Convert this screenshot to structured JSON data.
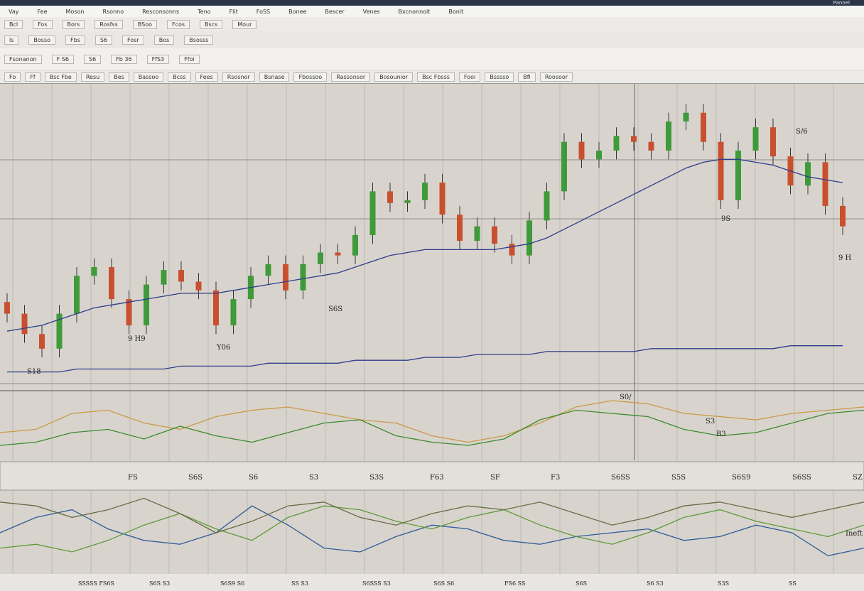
{
  "menu": [
    "Vay",
    "Fee",
    "Moson",
    "Rsonno",
    "Resconsonns",
    "Teno",
    "Flit",
    "FoSS",
    "Bonee",
    "Bescer",
    "Venes",
    "Bxcnonnoit",
    "Bonit"
  ],
  "window_title": "Pannel",
  "toolbar": {
    "row1": [
      "Bcl",
      "Fos",
      "Bors",
      "Rosfss",
      "BSoo",
      "Fcos",
      "Bscs",
      "Mour"
    ],
    "row2": [
      "ls",
      "Bosso",
      "Fbs",
      "S6",
      "Fosr",
      "Bos",
      "Bsosss"
    ],
    "row3": [
      "Fsonanon",
      "F S6",
      "S6",
      "Fb 36",
      "FfS3",
      "Ffoi"
    ]
  },
  "tabs": [
    "Fo",
    "Ff",
    "Bsc Fbe",
    "Resu",
    "Bes",
    "Bassoo",
    "Bcss",
    "Fees",
    "Rsosnor",
    "Bsnase",
    "Fbossoo",
    "Rassonsor",
    "Bosounior",
    "Bsc Fbsss",
    "Fooi",
    "Bsssso",
    "Bfi",
    "Roosoor"
  ],
  "chart_data": {
    "type": "candlestick",
    "open": [
      28,
      24,
      17,
      12,
      24,
      37,
      40,
      29,
      20,
      34,
      39,
      35,
      32,
      20,
      29,
      37,
      41,
      32,
      41,
      45,
      44,
      51,
      66,
      62,
      63,
      69,
      58,
      49,
      54,
      48,
      44,
      56,
      66,
      83,
      77,
      80,
      85,
      83,
      80,
      90,
      93,
      83,
      63,
      80,
      88,
      78,
      68,
      76,
      61
    ],
    "high": [
      31,
      27,
      20,
      27,
      40,
      43,
      43,
      32,
      37,
      42,
      42,
      38,
      35,
      32,
      40,
      44,
      44,
      44,
      48,
      48,
      54,
      69,
      69,
      66,
      72,
      72,
      61,
      57,
      57,
      51,
      59,
      69,
      86,
      86,
      83,
      88,
      88,
      86,
      93,
      96,
      96,
      86,
      83,
      91,
      91,
      81,
      79,
      79,
      64
    ],
    "low": [
      21,
      14,
      9,
      9,
      21,
      34,
      26,
      17,
      17,
      31,
      32,
      29,
      17,
      17,
      26,
      34,
      29,
      29,
      38,
      41,
      41,
      48,
      59,
      59,
      60,
      55,
      46,
      46,
      45,
      41,
      41,
      53,
      63,
      74,
      74,
      77,
      80,
      77,
      77,
      87,
      80,
      60,
      60,
      77,
      75,
      65,
      65,
      58,
      51
    ],
    "close": [
      24,
      17,
      12,
      24,
      37,
      40,
      29,
      20,
      34,
      39,
      35,
      32,
      20,
      29,
      37,
      41,
      32,
      41,
      45,
      44,
      51,
      66,
      62,
      63,
      69,
      58,
      49,
      54,
      48,
      44,
      56,
      66,
      83,
      77,
      80,
      85,
      83,
      80,
      90,
      93,
      83,
      63,
      80,
      88,
      78,
      68,
      76,
      61,
      54
    ],
    "ylim": [
      0,
      100
    ],
    "up_color": "#3f9a3a",
    "down_color": "#c9502f",
    "series": [
      {
        "color": "#2e3d8c",
        "values": [
          18,
          19,
          20,
          22,
          24,
          26,
          27,
          28,
          29,
          30,
          31,
          31,
          31,
          32,
          33,
          34,
          35,
          36,
          37,
          38,
          40,
          42,
          44,
          45,
          46,
          46,
          46,
          46,
          46,
          47,
          48,
          50,
          53,
          56,
          59,
          62,
          65,
          68,
          71,
          74,
          76,
          77,
          77,
          76,
          75,
          73,
          71,
          70,
          69
        ]
      },
      {
        "color": "#2e3d8c",
        "values": [
          4,
          4,
          4,
          4,
          5,
          5,
          5,
          5,
          5,
          5,
          6,
          6,
          6,
          6,
          6,
          7,
          7,
          7,
          7,
          7,
          8,
          8,
          8,
          8,
          9,
          9,
          9,
          10,
          10,
          10,
          10,
          11,
          11,
          11,
          11,
          11,
          11,
          12,
          12,
          12,
          12,
          12,
          12,
          12,
          12,
          13,
          13,
          13,
          13
        ]
      }
    ],
    "annotations": [
      "9 H9",
      "Y06",
      "S6S",
      "S18",
      "9S",
      "9 H",
      "S/6"
    ],
    "oscillator": {
      "ylim": [
        0,
        100
      ],
      "series": [
        {
          "color": "#c99a45",
          "values": [
            40,
            45,
            70,
            75,
            55,
            45,
            65,
            75,
            80,
            70,
            60,
            55,
            35,
            25,
            35,
            55,
            80,
            90,
            85,
            70,
            65,
            60,
            70,
            75,
            80
          ]
        },
        {
          "color": "#3c8a2e",
          "values": [
            20,
            25,
            40,
            45,
            30,
            50,
            35,
            25,
            40,
            55,
            60,
            35,
            25,
            20,
            30,
            60,
            75,
            70,
            65,
            45,
            35,
            40,
            55,
            70,
            75
          ]
        }
      ],
      "annotations": [
        "S0/",
        "S3",
        "B3"
      ]
    },
    "lower": {
      "ylim": [
        0,
        100
      ],
      "series": [
        {
          "color": "#2f5c9a",
          "values": [
            50,
            70,
            80,
            55,
            40,
            35,
            50,
            85,
            60,
            30,
            25,
            45,
            60,
            55,
            40,
            35,
            45,
            50,
            55,
            40,
            45,
            60,
            50,
            20,
            30
          ]
        },
        {
          "color": "#5e9a3a",
          "values": [
            30,
            35,
            25,
            40,
            60,
            75,
            55,
            40,
            70,
            85,
            80,
            65,
            55,
            70,
            80,
            60,
            45,
            35,
            50,
            70,
            80,
            65,
            55,
            45,
            60
          ]
        },
        {
          "color": "#6b6a45",
          "values": [
            90,
            85,
            70,
            80,
            95,
            75,
            50,
            65,
            85,
            90,
            70,
            60,
            75,
            85,
            80,
            90,
            75,
            60,
            70,
            85,
            90,
            80,
            70,
            80,
            90
          ]
        }
      ],
      "annotations": [
        "Ineft"
      ]
    }
  },
  "axis_labels": [
    "FS",
    "S6S",
    "S6",
    "S3",
    "S3S",
    "F63",
    "SF",
    "F3",
    "S6SS",
    "S5S",
    "S6S9",
    "S6SS",
    "SZ"
  ],
  "bottom_labels": [
    "SSSSS FS6S",
    "S6S S3",
    "S6S9 S6",
    "SS S3",
    "S6SSS S3",
    "S6S S6",
    "FS6 SS",
    "S6S",
    "S6 S3",
    "S3S",
    "SS"
  ]
}
